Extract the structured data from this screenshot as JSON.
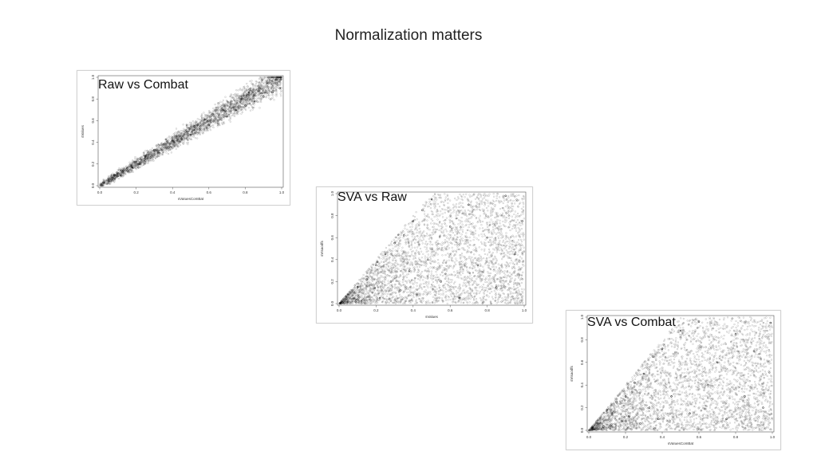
{
  "slide": {
    "title": "Normalization matters"
  },
  "chart_data": [
    {
      "type": "scatter",
      "title": "Raw vs Combat",
      "xlabel": "sVaIuesComBat",
      "ylabel": "sValues",
      "xlim": [
        0,
        1
      ],
      "ylim": [
        0,
        1
      ],
      "xticks": [
        "0.0",
        "0.2",
        "0.4",
        "0.6",
        "0.8",
        "1.0"
      ],
      "yticks": [
        "0.0",
        "0.2",
        "0.4",
        "0.6",
        "0.8",
        "1.0"
      ],
      "pattern": "tight linear correlation along y = x, wider spread near the upper end",
      "points": [
        [
          0.02,
          0.03
        ],
        [
          0.05,
          0.06
        ],
        [
          0.08,
          0.1
        ],
        [
          0.1,
          0.09
        ],
        [
          0.12,
          0.14
        ],
        [
          0.15,
          0.16
        ],
        [
          0.18,
          0.17
        ],
        [
          0.2,
          0.22
        ],
        [
          0.22,
          0.2
        ],
        [
          0.25,
          0.27
        ],
        [
          0.28,
          0.26
        ],
        [
          0.3,
          0.33
        ],
        [
          0.33,
          0.3
        ],
        [
          0.35,
          0.38
        ],
        [
          0.38,
          0.35
        ],
        [
          0.4,
          0.42
        ],
        [
          0.42,
          0.46
        ],
        [
          0.45,
          0.43
        ],
        [
          0.48,
          0.5
        ],
        [
          0.5,
          0.47
        ],
        [
          0.52,
          0.55
        ],
        [
          0.55,
          0.52
        ],
        [
          0.58,
          0.61
        ],
        [
          0.6,
          0.56
        ],
        [
          0.62,
          0.66
        ],
        [
          0.65,
          0.6
        ],
        [
          0.68,
          0.7
        ],
        [
          0.7,
          0.64
        ],
        [
          0.72,
          0.76
        ],
        [
          0.75,
          0.7
        ],
        [
          0.78,
          0.8
        ],
        [
          0.8,
          0.74
        ],
        [
          0.82,
          0.86
        ],
        [
          0.85,
          0.78
        ],
        [
          0.88,
          0.9
        ],
        [
          0.9,
          0.82
        ],
        [
          0.92,
          0.95
        ],
        [
          0.95,
          0.86
        ],
        [
          0.97,
          0.98
        ],
        [
          0.99,
          0.9
        ]
      ]
    },
    {
      "type": "scatter",
      "title": "SVA vs Raw",
      "xlabel": "sValues",
      "ylabel": "sVIsaodfs",
      "xlim": [
        0,
        1
      ],
      "ylim": [
        0,
        1
      ],
      "xticks": [
        "0.0",
        "0.2",
        "0.4",
        "0.6",
        "0.8",
        "1.0"
      ],
      "yticks": [
        "0.0",
        "0.2",
        "0.4",
        "0.6",
        "0.8",
        "1.0"
      ],
      "pattern": "points fill the region below y = 2x, dense near the origin",
      "points": [
        [
          0.02,
          0.01
        ],
        [
          0.05,
          0.08
        ],
        [
          0.08,
          0.05
        ],
        [
          0.1,
          0.15
        ],
        [
          0.12,
          0.02
        ],
        [
          0.15,
          0.22
        ],
        [
          0.18,
          0.1
        ],
        [
          0.2,
          0.35
        ],
        [
          0.22,
          0.05
        ],
        [
          0.25,
          0.45
        ],
        [
          0.28,
          0.2
        ],
        [
          0.3,
          0.55
        ],
        [
          0.33,
          0.12
        ],
        [
          0.35,
          0.62
        ],
        [
          0.38,
          0.3
        ],
        [
          0.4,
          0.75
        ],
        [
          0.42,
          0.08
        ],
        [
          0.45,
          0.85
        ],
        [
          0.48,
          0.4
        ],
        [
          0.5,
          0.95
        ],
        [
          0.55,
          0.2
        ],
        [
          0.6,
          0.7
        ],
        [
          0.65,
          0.05
        ],
        [
          0.7,
          0.9
        ],
        [
          0.75,
          0.35
        ],
        [
          0.8,
          0.6
        ],
        [
          0.85,
          0.15
        ],
        [
          0.9,
          0.98
        ],
        [
          0.95,
          0.45
        ],
        [
          0.99,
          0.75
        ]
      ]
    },
    {
      "type": "scatter",
      "title": "SVA vs Combat",
      "xlabel": "sVaIuesComBat",
      "ylabel": "sVIsaodfs",
      "xlim": [
        0,
        1
      ],
      "ylim": [
        0,
        1
      ],
      "xticks": [
        "0.0",
        "0.2",
        "0.4",
        "0.6",
        "0.8",
        "1.0"
      ],
      "yticks": [
        "0.0",
        "0.2",
        "0.4",
        "0.6",
        "0.8",
        "1.0"
      ],
      "pattern": "points fill the region below y = 2x, dense near the origin",
      "points": [
        [
          0.02,
          0.02
        ],
        [
          0.05,
          0.06
        ],
        [
          0.08,
          0.03
        ],
        [
          0.1,
          0.18
        ],
        [
          0.12,
          0.04
        ],
        [
          0.15,
          0.25
        ],
        [
          0.18,
          0.08
        ],
        [
          0.2,
          0.3
        ],
        [
          0.22,
          0.12
        ],
        [
          0.25,
          0.42
        ],
        [
          0.28,
          0.06
        ],
        [
          0.3,
          0.5
        ],
        [
          0.33,
          0.2
        ],
        [
          0.35,
          0.65
        ],
        [
          0.38,
          0.1
        ],
        [
          0.4,
          0.72
        ],
        [
          0.45,
          0.3
        ],
        [
          0.5,
          0.88
        ],
        [
          0.55,
          0.15
        ],
        [
          0.6,
          0.96
        ],
        [
          0.65,
          0.4
        ],
        [
          0.7,
          0.6
        ],
        [
          0.75,
          0.1
        ],
        [
          0.8,
          0.85
        ],
        [
          0.85,
          0.3
        ],
        [
          0.9,
          0.7
        ],
        [
          0.95,
          0.2
        ],
        [
          0.99,
          0.95
        ]
      ]
    }
  ]
}
